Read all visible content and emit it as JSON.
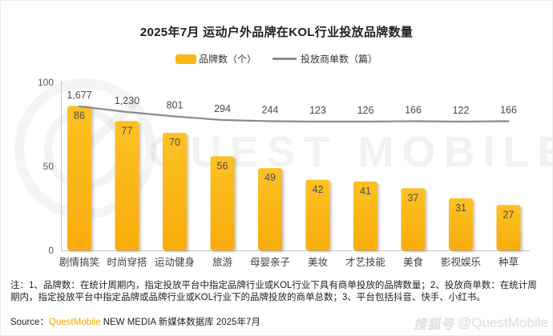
{
  "title": "2025年7月 运动户外品牌在KOL行业投放品牌数量",
  "legend": {
    "items": [
      {
        "label": "品牌数（个）",
        "color": "#FBB715"
      },
      {
        "label": "投放商单数（篇）",
        "color": "#8C8C8C"
      }
    ]
  },
  "chart_data": {
    "type": "bar",
    "title": "2025年7月 运动户外品牌在KOL行业投放品牌数量",
    "categories": [
      "剧情搞笑",
      "时尚穿搭",
      "运动健身",
      "旅游",
      "母婴亲子",
      "美妆",
      "才艺技能",
      "美食",
      "影视娱乐",
      "种草"
    ],
    "series": [
      {
        "name": "品牌数（个）",
        "type": "bar",
        "color": "#FBB715",
        "values": [
          86,
          77,
          70,
          56,
          49,
          42,
          41,
          37,
          31,
          27
        ]
      },
      {
        "name": "投放商单数（篇）",
        "type": "line",
        "color": "#8C8C8C",
        "values": [
          1677,
          1230,
          801,
          294,
          244,
          123,
          126,
          166,
          122,
          166
        ],
        "labels": [
          "1,677",
          "1,230",
          "801",
          "294",
          "244",
          "123",
          "126",
          "166",
          "122",
          "166"
        ]
      }
    ],
    "xlabel": "",
    "ylabel": "",
    "ylim": [
      0,
      100
    ],
    "y_ticks": [
      100,
      50,
      0
    ],
    "grid": false,
    "legend_position": "top"
  },
  "note": "注：1、品牌数：在统计周期内，指定投放平台中指定品牌行业或KOL行业下具有商单投放的品牌数量；2、投放商单数：在统计周期内，指定投放平台中指定品牌或品牌行业或KOL行业下的品牌投放的商单总数；3、平台包括抖音、快手、小红书。",
  "source": {
    "prefix": "Source：",
    "brand": "QuestMobile",
    "rest": " NEW MEDIA 新媒体数据库 2025年7月"
  },
  "watermark": {
    "center_text": "QUEST MOBILE",
    "badge": "搜狐号",
    "handle": "@QuestMobile"
  }
}
